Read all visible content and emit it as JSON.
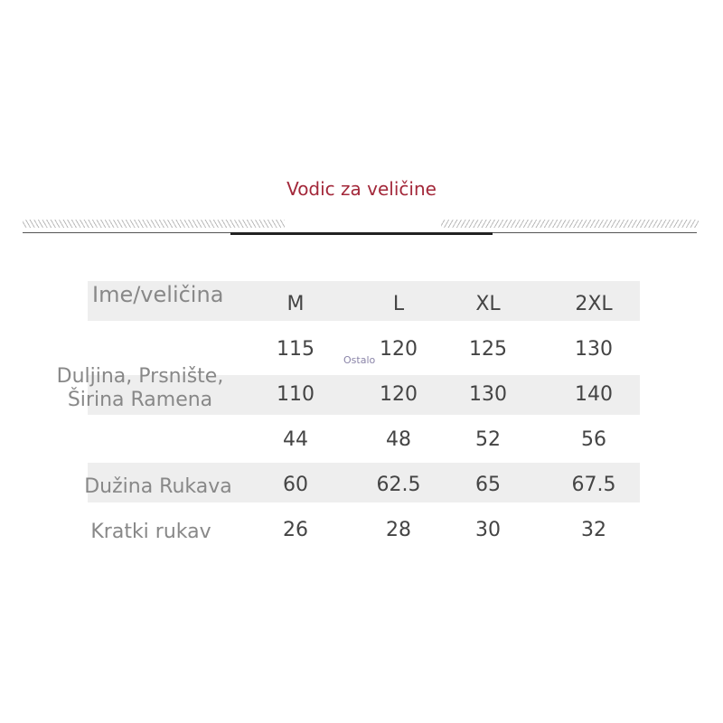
{
  "title": "Vodic za veličine",
  "header": {
    "label": "Ime/veličina",
    "sizes": [
      "M",
      "L",
      "XL",
      "2XL"
    ]
  },
  "groups": [
    {
      "label": "Duljina, Prsnište, Širina Ramena"
    },
    {
      "label": "Dužina Rukava"
    },
    {
      "label": "Kratki rukav"
    }
  ],
  "rows": [
    [
      "115",
      "120",
      "125",
      "130"
    ],
    [
      "110",
      "120",
      "130",
      "140"
    ],
    [
      "44",
      "48",
      "52",
      "56"
    ],
    [
      "60",
      "62.5",
      "65",
      "67.5"
    ],
    [
      "26",
      "28",
      "30",
      "32"
    ]
  ],
  "note": "Ostalo",
  "colors": {
    "title": "#a3283a",
    "band": "#eeeeee"
  }
}
